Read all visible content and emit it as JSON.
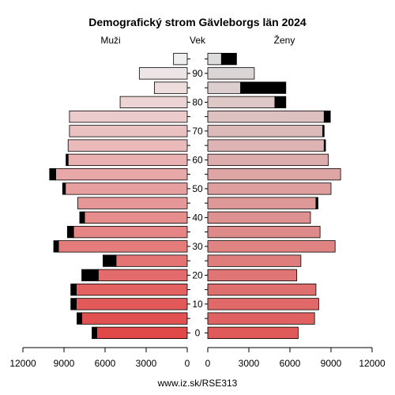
{
  "chart_data": {
    "type": "population-pyramid",
    "title": "Demografický strom Gävleborgs län 2024",
    "left_label": "Muži",
    "center_label": "Vek",
    "right_label": "Ženy",
    "footer": "www.iz.sk/RSE313",
    "xlim": [
      0,
      12000
    ],
    "x_ticks_left": [
      "12000",
      "9000",
      "6000",
      "3000",
      "0"
    ],
    "x_ticks_right": [
      "0",
      "3000",
      "6000",
      "9000",
      "12000"
    ],
    "age_ticks": [
      "0",
      "10",
      "20",
      "30",
      "40",
      "50",
      "60",
      "70",
      "80",
      "90"
    ],
    "age_groups": [
      "0-4",
      "5-9",
      "10-14",
      "15-19",
      "20-24",
      "25-29",
      "30-34",
      "35-39",
      "40-44",
      "45-49",
      "50-54",
      "55-59",
      "60-64",
      "65-69",
      "70-74",
      "75-79",
      "80-84",
      "85-89",
      "90-94",
      "95+"
    ],
    "men": [
      6600,
      7700,
      8100,
      8100,
      6500,
      5200,
      9400,
      8300,
      7500,
      8000,
      8900,
      9600,
      8700,
      8700,
      8600,
      8600,
      4900,
      2400,
      3500,
      1000
    ],
    "men_surplus": [
      350,
      350,
      400,
      400,
      1200,
      950,
      350,
      450,
      350,
      0,
      200,
      450,
      150,
      0,
      0,
      0,
      0,
      0,
      0,
      0
    ],
    "women": [
      6600,
      7800,
      8100,
      7900,
      6500,
      6800,
      9300,
      8200,
      7500,
      7900,
      9000,
      9700,
      8800,
      8500,
      8400,
      8500,
      4900,
      2400,
      3400,
      1000
    ],
    "women_surplus": [
      0,
      0,
      0,
      0,
      0,
      0,
      0,
      0,
      0,
      150,
      0,
      0,
      0,
      100,
      100,
      450,
      800,
      3300,
      0,
      1100
    ],
    "colors": {
      "men_bar_start": "#e04848",
      "men_bar_end": "#eeeeee",
      "women_bar_start": "#e05a5a",
      "women_bar_end": "#dcdcdc",
      "surplus": "#000000",
      "stroke": "#000000"
    }
  }
}
